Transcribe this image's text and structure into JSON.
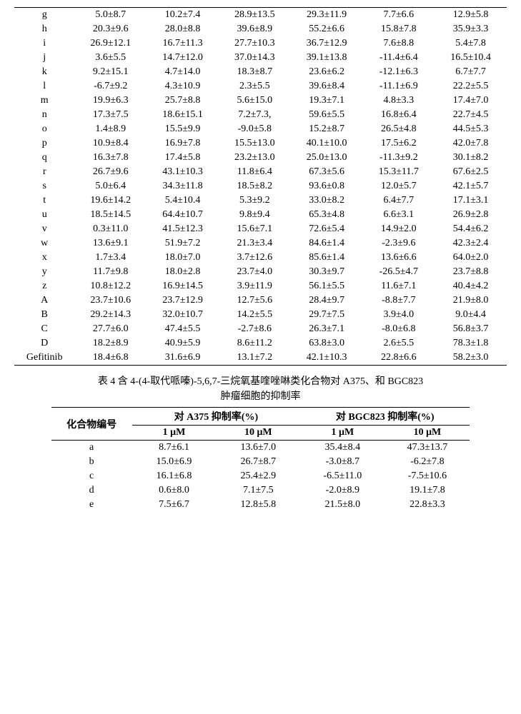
{
  "table1": {
    "rows": [
      {
        "id": "g",
        "c": [
          "5.0±8.7",
          "10.2±7.4",
          "28.9±13.5",
          "29.3±11.9",
          "7.7±6.6",
          "12.9±5.8"
        ]
      },
      {
        "id": "h",
        "c": [
          "20.3±9.6",
          "28.0±8.8",
          "39.6±8.9",
          "55.2±6.6",
          "15.8±7.8",
          "35.9±3.3"
        ]
      },
      {
        "id": "i",
        "c": [
          "26.9±12.1",
          "16.7±11.3",
          "27.7±10.3",
          "36.7±12.9",
          "7.6±8.8",
          "5.4±7.8"
        ]
      },
      {
        "id": "j",
        "c": [
          "3.6±5.5",
          "14.7±12.0",
          "37.0±14.3",
          "39.1±13.8",
          "-11.4±6.4",
          "16.5±10.4"
        ]
      },
      {
        "id": "k",
        "c": [
          "9.2±15.1",
          "4.7±14.0",
          "18.3±8.7",
          "23.6±6.2",
          "-12.1±6.3",
          "6.7±7.7"
        ]
      },
      {
        "id": "l",
        "c": [
          "-6.7±9.2",
          "4.3±10.9",
          "2.3±5.5",
          "39.6±8.4",
          "-11.1±6.9",
          "22.2±5.5"
        ]
      },
      {
        "id": "m",
        "c": [
          "19.9±6.3",
          "25.7±8.8",
          "5.6±15.0",
          "19.3±7.1",
          "4.8±3.3",
          "17.4±7.0"
        ]
      },
      {
        "id": "n",
        "c": [
          "17.3±7.5",
          "18.6±15.1",
          "7.2±7.3,",
          "59.6±5.5",
          "16.8±6.4",
          "22.7±4.5"
        ]
      },
      {
        "id": "o",
        "c": [
          "1.4±8.9",
          "15.5±9.9",
          "-9.0±5.8",
          "15.2±8.7",
          "26.5±4.8",
          "44.5±5.3"
        ]
      },
      {
        "id": "p",
        "c": [
          "10.9±8.4",
          "16.9±7.8",
          "15.5±13.0",
          "40.1±10.0",
          "17.5±6.2",
          "42.0±7.8"
        ]
      },
      {
        "id": "q",
        "c": [
          "16.3±7.8",
          "17.4±5.8",
          "23.2±13.0",
          "25.0±13.0",
          "-11.3±9.2",
          "30.1±8.2"
        ]
      },
      {
        "id": "r",
        "c": [
          "26.7±9.6",
          "43.1±10.3",
          "11.8±6.4",
          "67.3±5.6",
          "15.3±11.7",
          "67.6±2.5"
        ]
      },
      {
        "id": "s",
        "c": [
          "5.0±6.4",
          "34.3±11.8",
          "18.5±8.2",
          "93.6±0.8",
          "12.0±5.7",
          "42.1±5.7"
        ]
      },
      {
        "id": "t",
        "c": [
          "19.6±14.2",
          "5.4±10.4",
          "5.3±9.2",
          "33.0±8.2",
          "6.4±7.7",
          "17.1±3.1"
        ]
      },
      {
        "id": "u",
        "c": [
          "18.5±14.5",
          "64.4±10.7",
          "9.8±9.4",
          "65.3±4.8",
          "6.6±3.1",
          "26.9±2.8"
        ]
      },
      {
        "id": "v",
        "c": [
          "0.3±11.0",
          "41.5±12.3",
          "15.6±7.1",
          "72.6±5.4",
          "14.9±2.0",
          "54.4±6.2"
        ]
      },
      {
        "id": "w",
        "c": [
          "13.6±9.1",
          "51.9±7.2",
          "21.3±3.4",
          "84.6±1.4",
          "-2.3±9.6",
          "42.3±2.4"
        ]
      },
      {
        "id": "x",
        "c": [
          "1.7±3.4",
          "18.0±7.0",
          "3.7±12.6",
          "85.6±1.4",
          "13.6±6.6",
          "64.0±2.0"
        ]
      },
      {
        "id": "y",
        "c": [
          "11.7±9.8",
          "18.0±2.8",
          "23.7±4.0",
          "30.3±9.7",
          "-26.5±4.7",
          "23.7±8.8"
        ]
      },
      {
        "id": "z",
        "c": [
          "10.8±12.2",
          "16.9±14.5",
          "3.9±11.9",
          "56.1±5.5",
          "11.6±7.1",
          "40.4±4.2"
        ]
      },
      {
        "id": "A",
        "c": [
          "23.7±10.6",
          "23.7±12.9",
          "12.7±5.6",
          "28.4±9.7",
          "-8.8±7.7",
          "21.9±8.0"
        ]
      },
      {
        "id": "B",
        "c": [
          "29.2±14.3",
          "32.0±10.7",
          "14.2±5.5",
          "29.7±7.5",
          "3.9±4.0",
          "9.0±4.4"
        ]
      },
      {
        "id": "C",
        "c": [
          "27.7±6.0",
          "47.4±5.5",
          "-2.7±8.6",
          "26.3±7.1",
          "-8.0±6.8",
          "56.8±3.7"
        ]
      },
      {
        "id": "D",
        "c": [
          "18.2±8.9",
          "40.9±5.9",
          "8.6±11.2",
          "63.8±3.0",
          "2.6±5.5",
          "78.3±1.8"
        ]
      },
      {
        "id": "Gefitinib",
        "c": [
          "18.4±6.8",
          "31.6±6.9",
          "13.1±7.2",
          "42.1±10.3",
          "22.8±6.6",
          "58.2±3.0"
        ]
      }
    ]
  },
  "caption": {
    "line1": "表 4 含 4-(4-取代哌嗪)-5,6,7-三烷氧基喹唑啉类化合物对 A375、和 BGC823",
    "line2": "肿瘤细胞的抑制率"
  },
  "table2": {
    "header": {
      "compound": "化合物编号",
      "a375": "对 A375 抑制率(%)",
      "bgc": "对 BGC823 抑制率(%)",
      "c1": "1 μM",
      "c2": "10 μM",
      "c3": "1 μM",
      "c4": "10 μM"
    },
    "rows": [
      {
        "id": "a",
        "c": [
          "8.7±6.1",
          "13.6±7.0",
          "35.4±8.4",
          "47.3±13.7"
        ]
      },
      {
        "id": "b",
        "c": [
          "15.0±6.9",
          "26.7±8.7",
          "-3.0±8.7",
          "-6.2±7.8"
        ]
      },
      {
        "id": "c",
        "c": [
          "16.1±6.8",
          "25.4±2.9",
          "-6.5±11.0",
          "-7.5±10.6"
        ]
      },
      {
        "id": "d",
        "c": [
          "0.6±8.0",
          "7.1±7.5",
          "-2.0±8.9",
          "19.1±7.8"
        ]
      },
      {
        "id": "e",
        "c": [
          "7.5±6.7",
          "12.8±5.8",
          "21.5±8.0",
          "22.8±3.3"
        ]
      }
    ]
  }
}
